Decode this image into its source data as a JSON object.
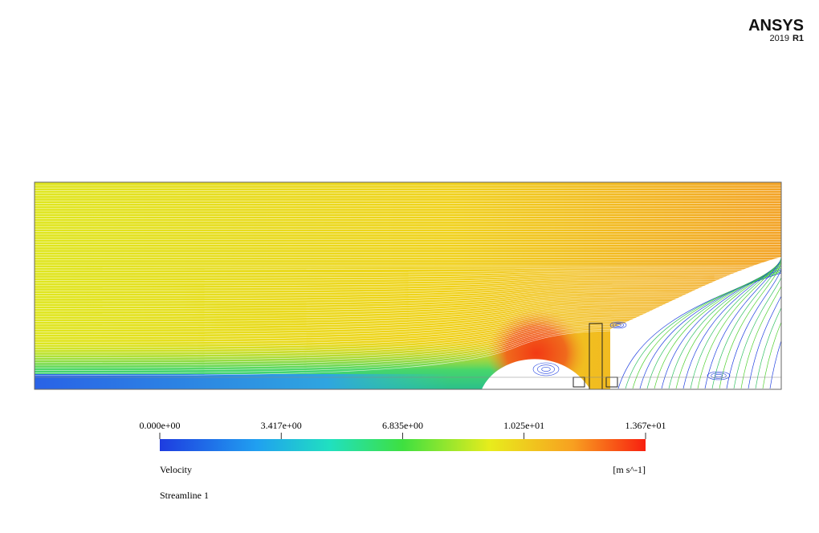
{
  "logo": {
    "brand": "ANSYS",
    "year": "2019",
    "release": "R1"
  },
  "legend": {
    "ticks": [
      {
        "value": 0,
        "label": "0.000e+00"
      },
      {
        "value": 3.417,
        "label": "3.417e+00"
      },
      {
        "value": 6.835,
        "label": "6.835e+00"
      },
      {
        "value": 10.25,
        "label": "1.025e+01"
      },
      {
        "value": 13.67,
        "label": "1.367e+01"
      }
    ],
    "variable": "Velocity",
    "units": "[m s^-1]"
  },
  "caption": "Streamline 1"
}
